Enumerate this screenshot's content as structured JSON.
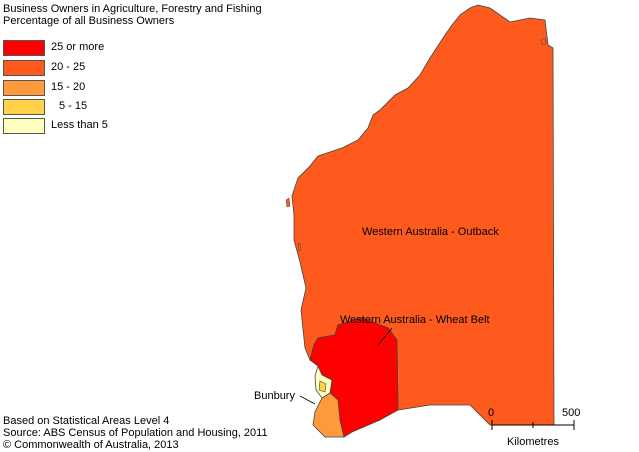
{
  "title": {
    "line1": "Business Owners in Agriculture, Forestry and Fishing",
    "line2": "Percentage of all Business Owners"
  },
  "legend": [
    {
      "label": "25 or more",
      "color": "#ff0000"
    },
    {
      "label": "20 - 25",
      "color": "#ff5a1e"
    },
    {
      "label": "15 - 20",
      "color": "#ff9a3c"
    },
    {
      "label": "5 - 15",
      "color": "#ffd24a"
    },
    {
      "label": "Less than 5",
      "color": "#ffffc0"
    }
  ],
  "regions": {
    "outback": {
      "name": "Western Australia - Outback",
      "category": "20 - 25",
      "color": "#ff5a1e"
    },
    "wheatbelt": {
      "name": "Western Australia - Wheat Belt",
      "category": "25 or more",
      "color": "#ff0000"
    },
    "bunbury": {
      "name": "Bunbury",
      "category": "15 - 20",
      "color": "#ff9a3c"
    }
  },
  "scale": {
    "start": "0",
    "end": "500",
    "unit": "Kilometres"
  },
  "footer": {
    "line1": "Based on Statistical Areas Level 4",
    "line2": "Source: ABS Census of Population and Housing, 2011",
    "line3": "© Commonwealth of Australia, 2013"
  }
}
